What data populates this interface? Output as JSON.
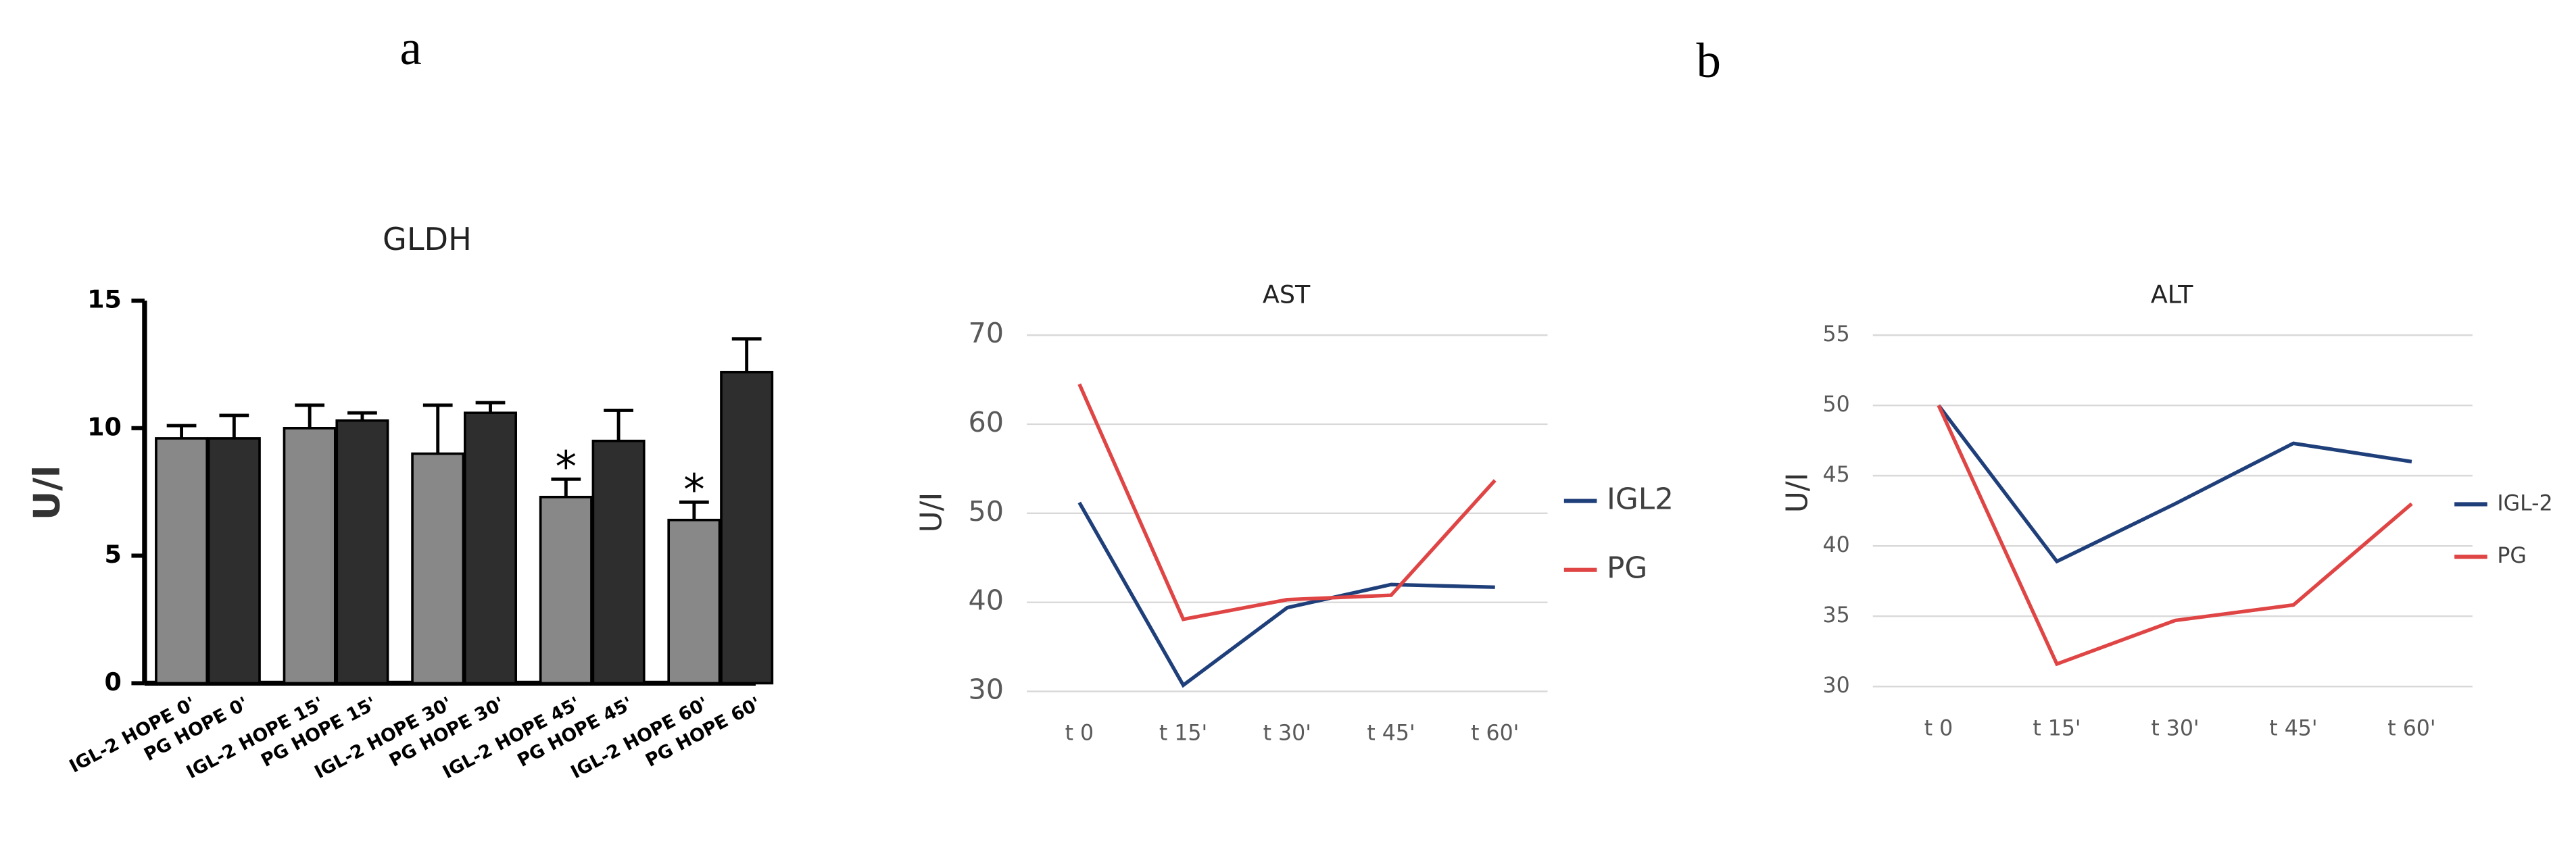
{
  "panels": [
    "a",
    "b"
  ],
  "chart_data": [
    {
      "type": "bar",
      "title": "GLDH",
      "y_label": "U/l",
      "categories": [
        "IGL-2 HOPE 0'",
        "PG HOPE 0'",
        "IGL-2 HOPE 15'",
        "PG HOPE 15'",
        "IGL-2 HOPE 30'",
        "PG HOPE 30'",
        "IGL-2 HOPE 45'",
        "PG HOPE 45'",
        "IGL-2 HOPE 60'",
        "PG HOPE 60'"
      ],
      "values": [
        9.6,
        9.6,
        10.0,
        10.3,
        9.0,
        10.6,
        7.3,
        9.5,
        6.4,
        12.2
      ],
      "errors": [
        0.5,
        0.9,
        0.9,
        0.3,
        1.9,
        0.4,
        0.7,
        1.2,
        0.7,
        1.3
      ],
      "colors": [
        "#888888",
        "#2e2e2e",
        "#888888",
        "#2e2e2e",
        "#888888",
        "#2e2e2e",
        "#888888",
        "#2e2e2e",
        "#888888",
        "#2e2e2e"
      ],
      "annotations": [
        {
          "text": "*",
          "category": "IGL-2 HOPE 45'"
        },
        {
          "text": "*",
          "category": "IGL-2 HOPE 60'"
        }
      ],
      "ylim": [
        0,
        15
      ],
      "yticks": [
        0,
        5,
        10,
        15
      ],
      "grid": false
    },
    {
      "type": "line",
      "title": "AST",
      "y_label": "U/I",
      "categories": [
        "t 0",
        "t 15'",
        "t 30'",
        "t 45'",
        "t 60'"
      ],
      "series": [
        {
          "name": "IGL2",
          "color": "#1f3f7a",
          "values": [
            51.2,
            30.7,
            39.4,
            42.0,
            41.7
          ]
        },
        {
          "name": "PG",
          "color": "#e04545",
          "values": [
            64.5,
            38.1,
            40.3,
            40.8,
            53.7
          ]
        }
      ],
      "ylim": [
        30,
        70
      ],
      "yticks": [
        30,
        40,
        50,
        60,
        70
      ],
      "grid": true
    },
    {
      "type": "line",
      "title": "ALT",
      "y_label": "U/I",
      "categories": [
        "t 0",
        "t 15'",
        "t 30'",
        "t 45'",
        "t 60'"
      ],
      "series": [
        {
          "name": "IGL-2",
          "color": "#1f3f7a",
          "values": [
            50,
            38.9,
            43.0,
            47.3,
            46.0
          ]
        },
        {
          "name": "PG",
          "color": "#e04545",
          "values": [
            50,
            31.6,
            34.7,
            35.8,
            43.0
          ]
        }
      ],
      "ylim": [
        30,
        55
      ],
      "yticks": [
        30,
        35,
        40,
        45,
        50,
        55
      ],
      "grid": true
    }
  ]
}
